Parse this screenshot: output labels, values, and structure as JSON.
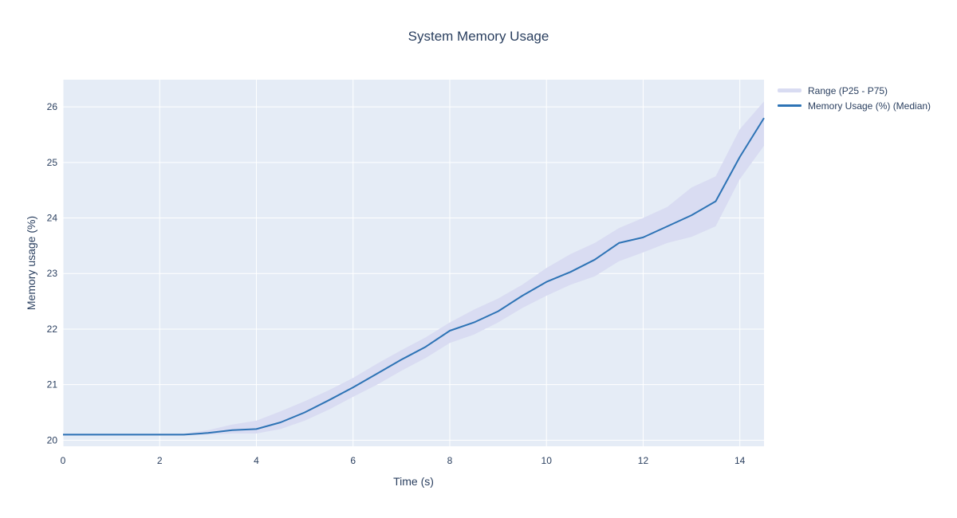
{
  "title": "System Memory Usage",
  "colors": {
    "text": "#2a3f5f",
    "plot_background": "#e5ecf6",
    "gridline": "#ffffff",
    "median_line": "#2d73b5",
    "band_fill": "#d9dcf2"
  },
  "legend": {
    "items": [
      {
        "label": "Range (P25 - P75)",
        "swatch": "band-swatch-icon"
      },
      {
        "label": "Memory Usage (%) (Median)",
        "swatch": "line-swatch-icon"
      }
    ]
  },
  "chart_data": {
    "type": "line",
    "title": "System Memory Usage",
    "xlabel": "Time (s)",
    "ylabel": "Memory usage (%)",
    "grid": true,
    "legend_position": "top-right-outside",
    "xlim": [
      0,
      14.5
    ],
    "ylim": [
      19.89,
      26.49
    ],
    "xticks": [
      0,
      2,
      4,
      6,
      8,
      10,
      12,
      14
    ],
    "yticks": [
      20,
      21,
      22,
      23,
      24,
      25,
      26
    ],
    "x": [
      0,
      0.5,
      1,
      1.5,
      2,
      2.5,
      3,
      3.5,
      4,
      4.5,
      5,
      5.5,
      6,
      6.5,
      7,
      7.5,
      8,
      8.5,
      9,
      9.5,
      10,
      10.5,
      11,
      11.5,
      12,
      12.5,
      13,
      13.5,
      14,
      14.5
    ],
    "series": [
      {
        "name": "Memory Usage (%) (Median)",
        "type": "line",
        "values": [
          20.1,
          20.1,
          20.1,
          20.1,
          20.1,
          20.1,
          20.13,
          20.18,
          20.2,
          20.32,
          20.5,
          20.72,
          20.95,
          21.2,
          21.45,
          21.68,
          21.97,
          22.12,
          22.32,
          22.6,
          22.85,
          23.03,
          23.25,
          23.55,
          23.65,
          23.85,
          24.05,
          24.3,
          25.1,
          25.8
        ]
      },
      {
        "name": "Range (P25 - P75)",
        "type": "band",
        "lower": [
          20.08,
          20.08,
          20.08,
          20.08,
          20.08,
          20.08,
          20.1,
          20.12,
          20.12,
          20.2,
          20.35,
          20.55,
          20.78,
          21.0,
          21.25,
          21.48,
          21.75,
          21.9,
          22.12,
          22.38,
          22.6,
          22.8,
          22.95,
          23.22,
          23.38,
          23.55,
          23.66,
          23.85,
          24.7,
          25.3
        ],
        "upper": [
          20.12,
          20.12,
          20.12,
          20.12,
          20.12,
          20.12,
          20.18,
          20.28,
          20.35,
          20.52,
          20.7,
          20.9,
          21.12,
          21.38,
          21.62,
          21.85,
          22.12,
          22.35,
          22.55,
          22.8,
          23.1,
          23.35,
          23.55,
          23.82,
          24.0,
          24.2,
          24.55,
          24.75,
          25.6,
          26.1
        ]
      }
    ]
  }
}
